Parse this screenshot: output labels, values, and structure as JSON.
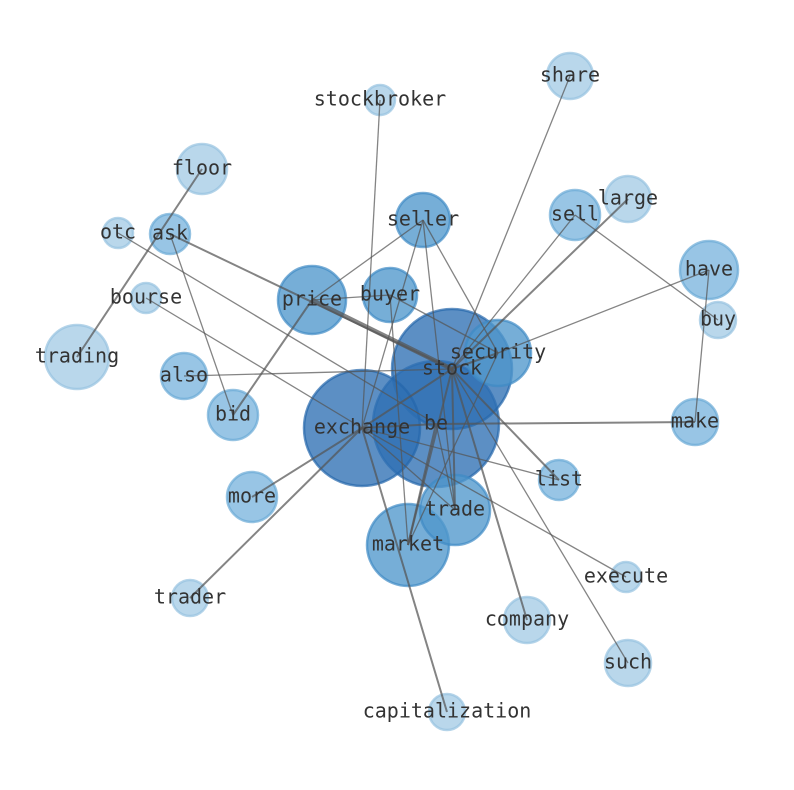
{
  "colors": {
    "dark": "#2e6fb4",
    "mid": "#4f97cc",
    "light": "#a7cde6",
    "edge": "#555555"
  },
  "nodes": [
    {
      "id": "stock",
      "label": "stock",
      "tone": "dark"
    },
    {
      "id": "be",
      "label": "be",
      "tone": "dark"
    },
    {
      "id": "exchange",
      "label": "exchange",
      "tone": "dark"
    },
    {
      "id": "security",
      "label": "security",
      "tone": "mid"
    },
    {
      "id": "market",
      "label": "market",
      "tone": "mid"
    },
    {
      "id": "trade",
      "label": "trade",
      "tone": "mid"
    },
    {
      "id": "price",
      "label": "price",
      "tone": "mid"
    },
    {
      "id": "buyer",
      "label": "buyer",
      "tone": "mid"
    },
    {
      "id": "seller",
      "label": "seller",
      "tone": "mid"
    },
    {
      "id": "sell",
      "label": "sell",
      "tone": "midlight"
    },
    {
      "id": "have",
      "label": "have",
      "tone": "midlight"
    },
    {
      "id": "make",
      "label": "make",
      "tone": "midlight"
    },
    {
      "id": "list",
      "label": "list",
      "tone": "midlight"
    },
    {
      "id": "ask",
      "label": "ask",
      "tone": "midlight"
    },
    {
      "id": "also",
      "label": "also",
      "tone": "midlight"
    },
    {
      "id": "bid",
      "label": "bid",
      "tone": "midlight"
    },
    {
      "id": "more",
      "label": "more",
      "tone": "midlight"
    },
    {
      "id": "floor",
      "label": "floor",
      "tone": "light"
    },
    {
      "id": "large",
      "label": "large",
      "tone": "light"
    },
    {
      "id": "buy",
      "label": "buy",
      "tone": "light"
    },
    {
      "id": "otc",
      "label": "otc",
      "tone": "light"
    },
    {
      "id": "bourse",
      "label": "bourse",
      "tone": "light"
    },
    {
      "id": "trading",
      "label": "trading",
      "tone": "light"
    },
    {
      "id": "share",
      "label": "share",
      "tone": "light"
    },
    {
      "id": "stockbroker",
      "label": "stockbroker",
      "tone": "light"
    },
    {
      "id": "execute",
      "label": "execute",
      "tone": "light"
    },
    {
      "id": "company",
      "label": "company",
      "tone": "light"
    },
    {
      "id": "such",
      "label": "such",
      "tone": "light"
    },
    {
      "id": "trader",
      "label": "trader",
      "tone": "light"
    },
    {
      "id": "capitalization",
      "label": "capitalization",
      "tone": "light"
    }
  ],
  "edges": [
    [
      "stock",
      "share",
      1
    ],
    [
      "stockbroker",
      "exchange",
      1
    ],
    [
      "floor",
      "trading",
      2
    ],
    [
      "price",
      "bid",
      2
    ],
    [
      "exchange",
      "trader",
      2
    ],
    [
      "exchange",
      "more",
      2
    ],
    [
      "ask",
      "stock",
      2
    ],
    [
      "ask",
      "bid",
      1
    ],
    [
      "otc",
      "be",
      1
    ],
    [
      "bourse",
      "exchange",
      1
    ],
    [
      "also",
      "stock",
      1
    ],
    [
      "seller",
      "price",
      1
    ],
    [
      "seller",
      "security",
      1
    ],
    [
      "seller",
      "trade",
      1
    ],
    [
      "seller",
      "exchange",
      1
    ],
    [
      "buyer",
      "price",
      1
    ],
    [
      "buyer",
      "security",
      1
    ],
    [
      "buyer",
      "market",
      1
    ],
    [
      "sell",
      "stock",
      1
    ],
    [
      "large",
      "stock",
      2
    ],
    [
      "sell",
      "buy",
      1
    ],
    [
      "have",
      "security",
      1
    ],
    [
      "have",
      "make",
      1
    ],
    [
      "make",
      "be",
      2
    ],
    [
      "list",
      "exchange",
      1
    ],
    [
      "list",
      "stock",
      2
    ],
    [
      "execute",
      "exchange",
      1
    ],
    [
      "company",
      "stock",
      2
    ],
    [
      "such",
      "stock",
      1
    ],
    [
      "capitalization",
      "exchange",
      2
    ],
    [
      "market",
      "stock",
      2
    ],
    [
      "market",
      "security",
      1
    ],
    [
      "market",
      "be",
      2
    ],
    [
      "trade",
      "stock",
      2
    ],
    [
      "trade",
      "be",
      1
    ],
    [
      "trade",
      "exchange",
      1
    ],
    [
      "exchange",
      "be",
      2
    ],
    [
      "exchange",
      "stock",
      2
    ],
    [
      "security",
      "stock",
      2
    ],
    [
      "price",
      "stock",
      3
    ]
  ]
}
